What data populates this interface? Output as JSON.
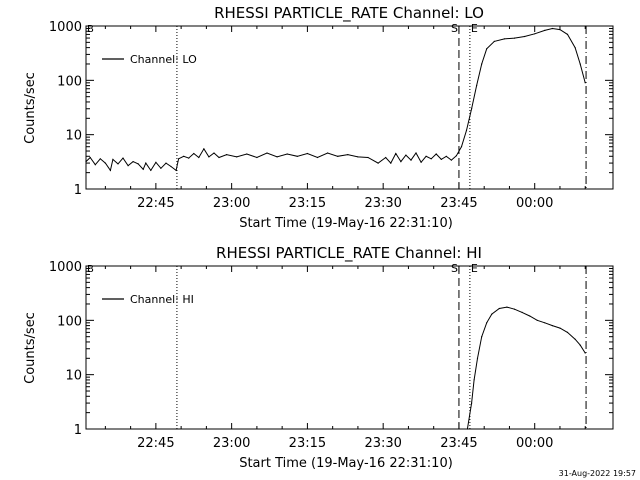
{
  "footer_timestamp": "31-Aug-2022 19:57",
  "chart_data": [
    {
      "type": "line",
      "title": "RHESSI PARTICLE_RATE Channel: LO",
      "xlabel": "Start Time (19-May-16 22:31:10)",
      "ylabel": "Counts/sec",
      "y_scale": "log",
      "xlim": [
        "22:31:10",
        "00:15:30"
      ],
      "ylim": [
        1,
        1000
      ],
      "x_ticks": [
        "22:45",
        "23:00",
        "23:15",
        "23:30",
        "23:45",
        "00:00"
      ],
      "y_ticks": [
        "1",
        "10",
        "100",
        "1000"
      ],
      "legend": {
        "position": "top-left",
        "entries": [
          "Channel: LO"
        ]
      },
      "markers": [
        {
          "label": "",
          "time": "22:31:10",
          "style": "dash-dot"
        },
        {
          "label": "",
          "time": "22:49:10",
          "style": "dotted"
        },
        {
          "label": "S",
          "time": "23:45:00",
          "style": "dashed"
        },
        {
          "label": "E",
          "time": "23:47:10",
          "style": "dotted"
        },
        {
          "label": "",
          "time": "00:10:10",
          "style": "dash-dot"
        }
      ],
      "marker_flags": [
        "B"
      ],
      "series": [
        {
          "name": "Channel: LO",
          "points": [
            [
              "22:31:10",
              3.2
            ],
            [
              "22:32:00",
              3.8
            ],
            [
              "22:33:00",
              2.8
            ],
            [
              "22:34:00",
              3.6
            ],
            [
              "22:35:00",
              3.0
            ],
            [
              "22:36:00",
              2.2
            ],
            [
              "22:36:30",
              3.5
            ],
            [
              "22:37:30",
              2.9
            ],
            [
              "22:38:30",
              3.7
            ],
            [
              "22:39:30",
              2.7
            ],
            [
              "22:40:30",
              3.2
            ],
            [
              "22:41:30",
              2.9
            ],
            [
              "22:42:30",
              2.3
            ],
            [
              "22:43:00",
              3.0
            ],
            [
              "22:44:00",
              2.2
            ],
            [
              "22:45:00",
              3.1
            ],
            [
              "22:46:00",
              2.4
            ],
            [
              "22:47:00",
              3.0
            ],
            [
              "22:48:00",
              2.6
            ],
            [
              "22:49:00",
              2.2
            ],
            [
              "22:49:30",
              3.6
            ],
            [
              "22:50:30",
              4.0
            ],
            [
              "22:51:30",
              3.7
            ],
            [
              "22:52:30",
              4.5
            ],
            [
              "22:53:30",
              3.8
            ],
            [
              "22:54:30",
              5.5
            ],
            [
              "22:55:30",
              3.9
            ],
            [
              "22:56:30",
              4.6
            ],
            [
              "22:57:30",
              3.8
            ],
            [
              "22:59:00",
              4.3
            ],
            [
              "23:01:00",
              3.9
            ],
            [
              "23:03:00",
              4.4
            ],
            [
              "23:05:00",
              3.8
            ],
            [
              "23:07:00",
              4.6
            ],
            [
              "23:09:00",
              3.9
            ],
            [
              "23:11:00",
              4.4
            ],
            [
              "23:13:00",
              4.0
            ],
            [
              "23:15:00",
              4.5
            ],
            [
              "23:17:00",
              3.8
            ],
            [
              "23:19:00",
              4.6
            ],
            [
              "23:21:00",
              4.0
            ],
            [
              "23:23:00",
              4.3
            ],
            [
              "23:25:00",
              3.9
            ],
            [
              "23:27:00",
              3.8
            ],
            [
              "23:29:00",
              3.0
            ],
            [
              "23:30:30",
              3.8
            ],
            [
              "23:31:30",
              3.0
            ],
            [
              "23:32:30",
              4.5
            ],
            [
              "23:33:30",
              3.2
            ],
            [
              "23:34:30",
              4.2
            ],
            [
              "23:35:30",
              3.4
            ],
            [
              "23:36:30",
              4.6
            ],
            [
              "23:37:30",
              3.1
            ],
            [
              "23:38:30",
              4.0
            ],
            [
              "23:39:30",
              3.6
            ],
            [
              "23:40:30",
              4.4
            ],
            [
              "23:41:30",
              3.5
            ],
            [
              "23:42:30",
              4.0
            ],
            [
              "23:43:30",
              3.4
            ],
            [
              "23:44:30",
              4.1
            ],
            [
              "23:45:30",
              6.0
            ],
            [
              "23:46:30",
              12
            ],
            [
              "23:47:30",
              30
            ],
            [
              "23:48:30",
              80
            ],
            [
              "23:49:30",
              200
            ],
            [
              "23:50:30",
              380
            ],
            [
              "23:52:00",
              520
            ],
            [
              "23:54:00",
              580
            ],
            [
              "23:56:00",
              600
            ],
            [
              "23:58:00",
              640
            ],
            [
              "00:00:00",
              720
            ],
            [
              "00:02:00",
              830
            ],
            [
              "00:03:30",
              900
            ],
            [
              "00:05:00",
              860
            ],
            [
              "00:06:30",
              700
            ],
            [
              "00:08:00",
              400
            ],
            [
              "00:09:00",
              200
            ],
            [
              "00:10:00",
              90
            ]
          ]
        }
      ]
    },
    {
      "type": "line",
      "title": "RHESSI PARTICLE_RATE Channel: HI",
      "xlabel": "Start Time (19-May-16 22:31:10)",
      "ylabel": "Counts/sec",
      "y_scale": "log",
      "xlim": [
        "22:31:10",
        "00:15:30"
      ],
      "ylim": [
        1,
        1000
      ],
      "x_ticks": [
        "22:45",
        "23:00",
        "23:15",
        "23:30",
        "23:45",
        "00:00"
      ],
      "y_ticks": [
        "1",
        "10",
        "100",
        "1000"
      ],
      "legend": {
        "position": "top-left",
        "entries": [
          "Channel: HI"
        ]
      },
      "markers": [
        {
          "label": "",
          "time": "22:31:10",
          "style": "dash-dot"
        },
        {
          "label": "",
          "time": "22:49:10",
          "style": "dotted"
        },
        {
          "label": "S",
          "time": "23:45:00",
          "style": "dashed"
        },
        {
          "label": "E",
          "time": "23:47:10",
          "style": "dotted"
        },
        {
          "label": "",
          "time": "00:10:10",
          "style": "dash-dot"
        }
      ],
      "marker_flags": [
        "B"
      ],
      "series": [
        {
          "name": "Channel: HI",
          "points": [
            [
              "23:46:40",
              1.0
            ],
            [
              "23:47:30",
              3.0
            ],
            [
              "23:48:00",
              8.0
            ],
            [
              "23:48:40",
              20
            ],
            [
              "23:49:30",
              50
            ],
            [
              "23:50:30",
              90
            ],
            [
              "23:51:30",
              130
            ],
            [
              "23:53:00",
              165
            ],
            [
              "23:54:30",
              175
            ],
            [
              "23:56:00",
              160
            ],
            [
              "23:57:30",
              140
            ],
            [
              "23:59:00",
              120
            ],
            [
              "00:00:30",
              100
            ],
            [
              "00:02:00",
              90
            ],
            [
              "00:03:30",
              80
            ],
            [
              "00:05:00",
              72
            ],
            [
              "00:06:30",
              60
            ],
            [
              "00:08:00",
              45
            ],
            [
              "00:09:00",
              35
            ],
            [
              "00:10:00",
              25
            ]
          ]
        }
      ]
    }
  ]
}
